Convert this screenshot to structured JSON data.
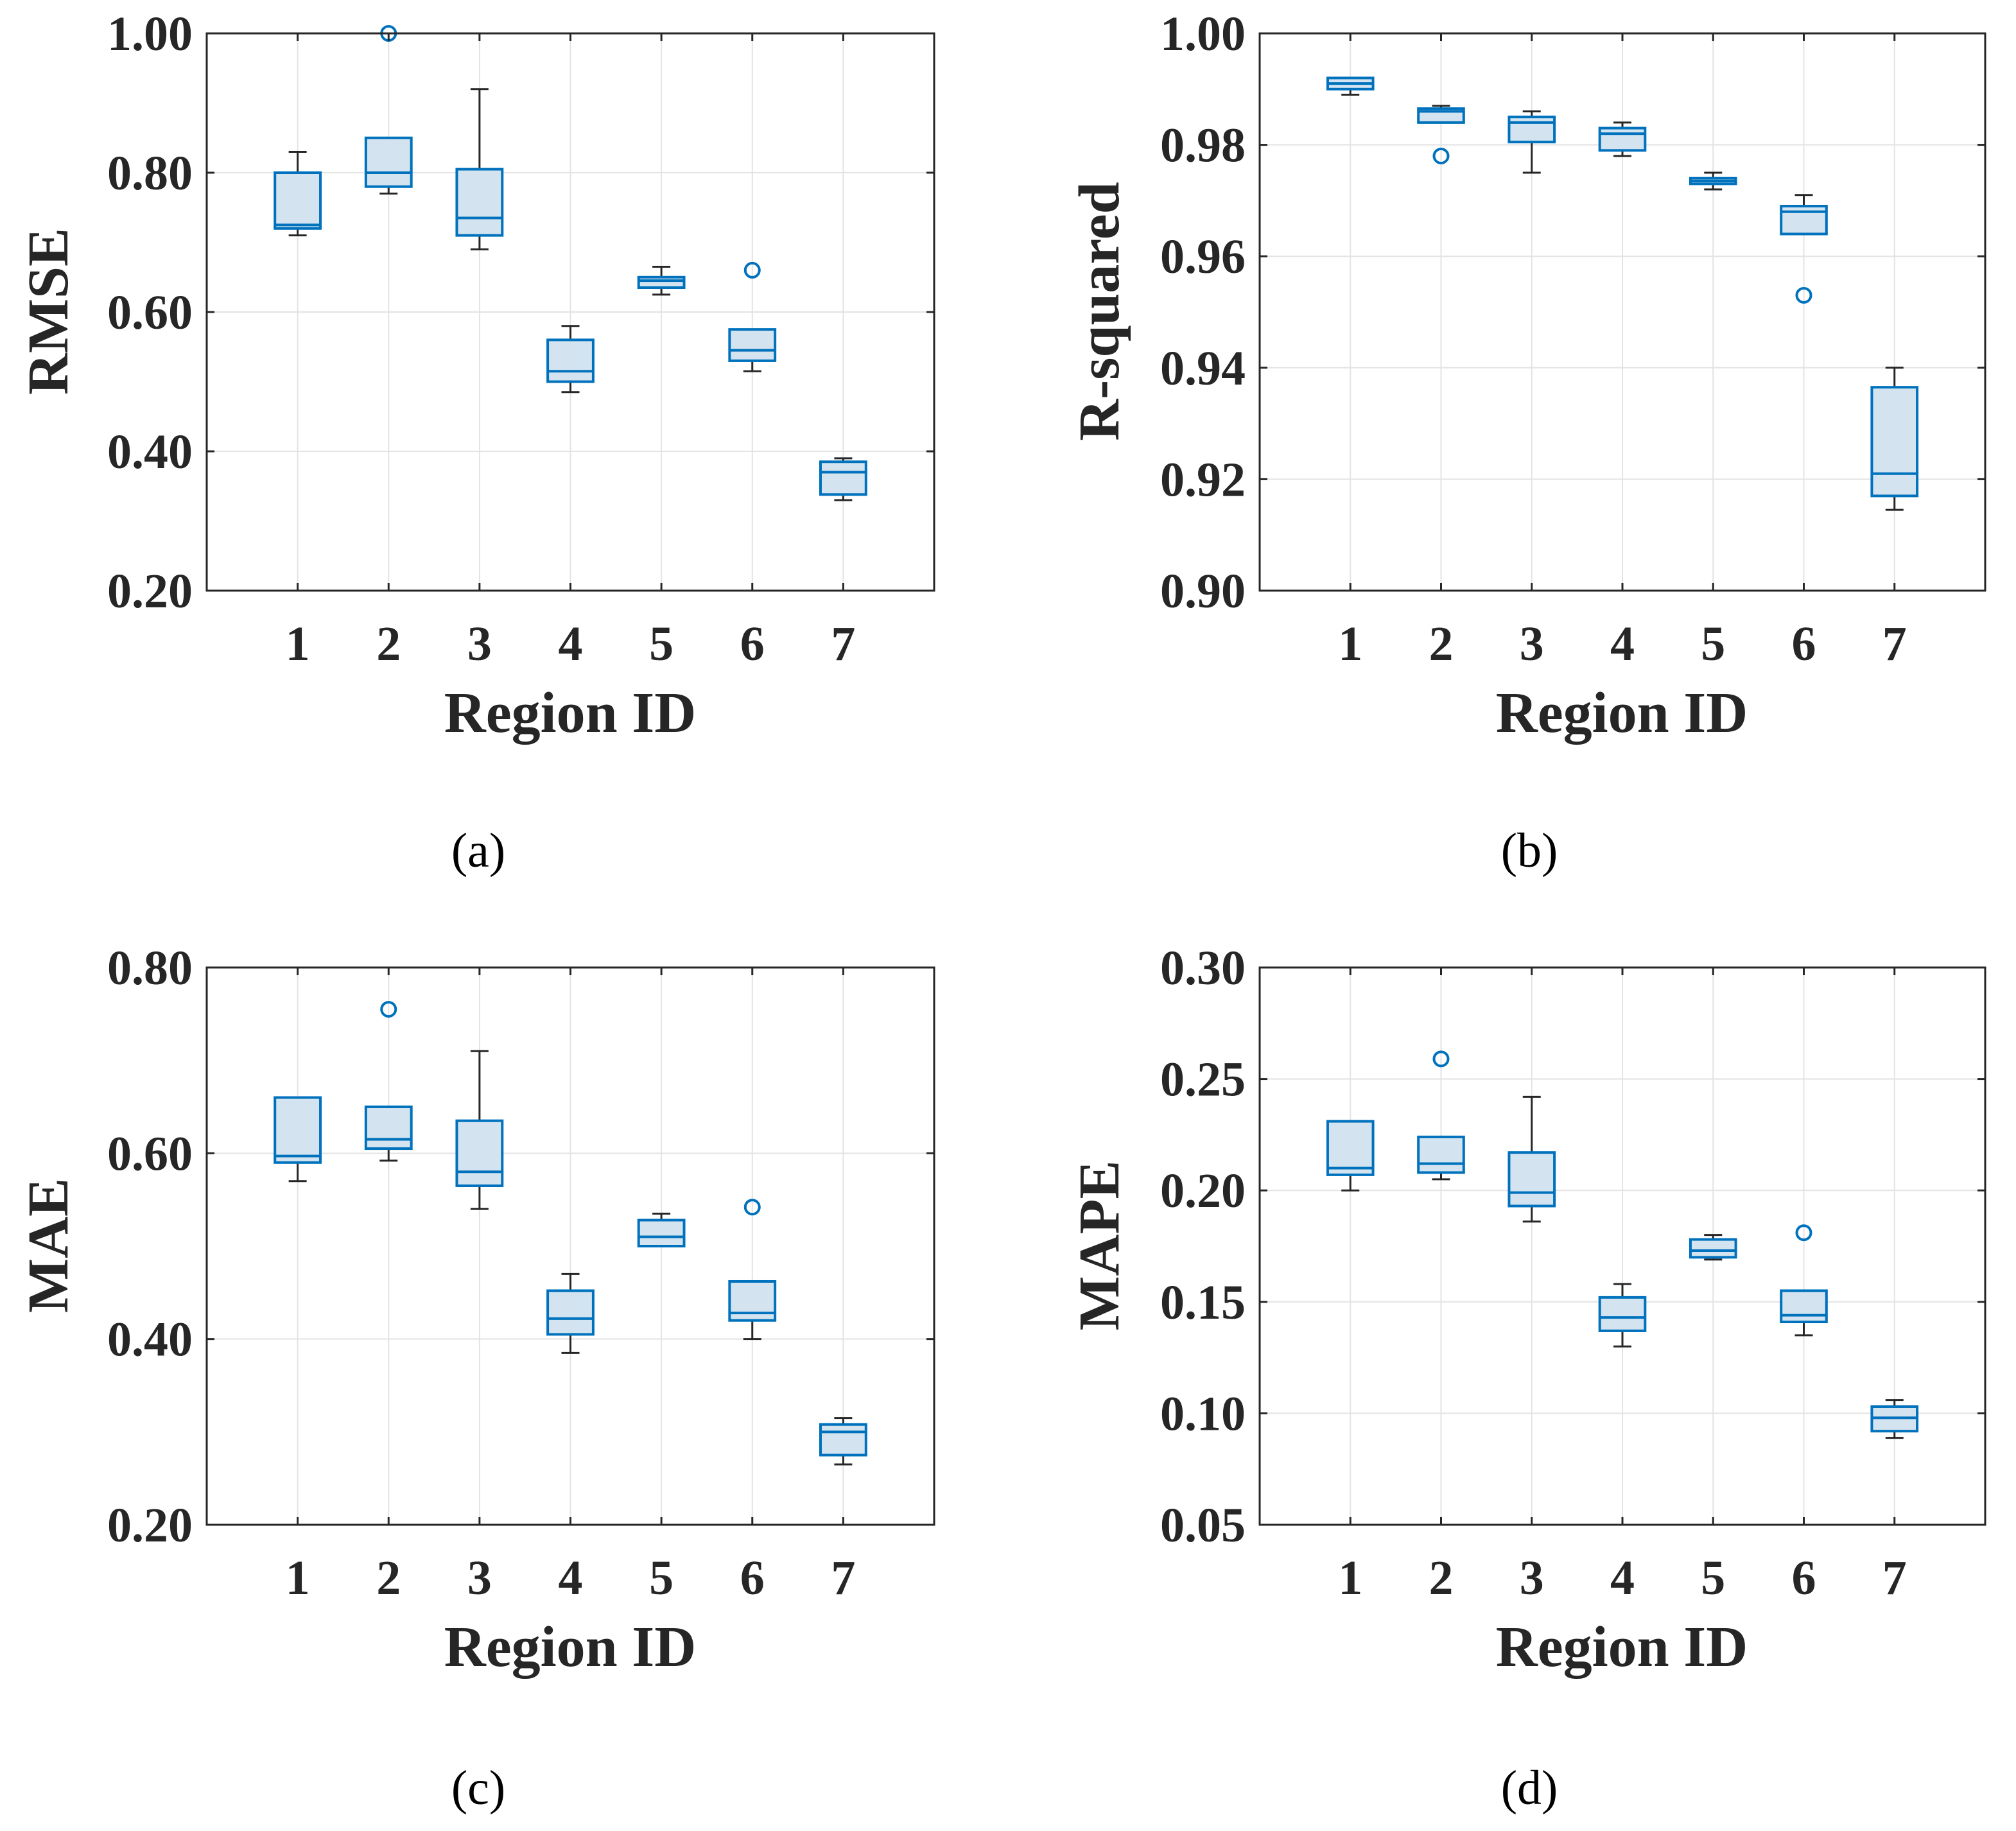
{
  "colors": {
    "box_edge": "#0072BD",
    "box_fill": "#D3E4F0",
    "whisker": "#262626",
    "grid": "#E3E3E3",
    "axis": "#262626"
  },
  "chart_data": [
    {
      "type": "box",
      "caption": "(a)",
      "xlabel": "Region ID",
      "ylabel": "RMSE",
      "categories": [
        "1",
        "2",
        "3",
        "4",
        "5",
        "6",
        "7"
      ],
      "ylim": [
        0.2,
        1.0
      ],
      "yticks": [
        0.2,
        0.4,
        0.6,
        0.8,
        1.0
      ],
      "ytick_labels": [
        "0.20",
        "0.40",
        "0.60",
        "0.80",
        "1.00"
      ],
      "grid": true,
      "boxes": [
        {
          "min": 0.71,
          "q1": 0.72,
          "median": 0.725,
          "q3": 0.8,
          "max": 0.83,
          "outliers": []
        },
        {
          "min": 0.77,
          "q1": 0.78,
          "median": 0.8,
          "q3": 0.85,
          "max": 0.85,
          "outliers": [
            1.0
          ]
        },
        {
          "min": 0.69,
          "q1": 0.71,
          "median": 0.735,
          "q3": 0.805,
          "max": 0.92,
          "outliers": []
        },
        {
          "min": 0.485,
          "q1": 0.5,
          "median": 0.515,
          "q3": 0.56,
          "max": 0.58,
          "outliers": []
        },
        {
          "min": 0.625,
          "q1": 0.635,
          "median": 0.645,
          "q3": 0.65,
          "max": 0.665,
          "outliers": []
        },
        {
          "min": 0.515,
          "q1": 0.53,
          "median": 0.545,
          "q3": 0.575,
          "max": 0.575,
          "outliers": [
            0.66
          ]
        },
        {
          "min": 0.33,
          "q1": 0.338,
          "median": 0.37,
          "q3": 0.385,
          "max": 0.39,
          "outliers": []
        }
      ]
    },
    {
      "type": "box",
      "caption": "(b)",
      "xlabel": "Region ID",
      "ylabel": "R-squared",
      "categories": [
        "1",
        "2",
        "3",
        "4",
        "5",
        "6",
        "7"
      ],
      "ylim": [
        0.9,
        1.0
      ],
      "yticks": [
        0.9,
        0.92,
        0.94,
        0.96,
        0.98,
        1.0
      ],
      "ytick_labels": [
        "0.90",
        "0.92",
        "0.94",
        "0.96",
        "0.98",
        "1.00"
      ],
      "grid": true,
      "boxes": [
        {
          "min": 0.989,
          "q1": 0.99,
          "median": 0.991,
          "q3": 0.992,
          "max": 0.992,
          "outliers": []
        },
        {
          "min": 0.984,
          "q1": 0.984,
          "median": 0.986,
          "q3": 0.9865,
          "max": 0.987,
          "outliers": [
            0.978
          ]
        },
        {
          "min": 0.975,
          "q1": 0.9805,
          "median": 0.984,
          "q3": 0.985,
          "max": 0.986,
          "outliers": []
        },
        {
          "min": 0.978,
          "q1": 0.979,
          "median": 0.982,
          "q3": 0.983,
          "max": 0.984,
          "outliers": []
        },
        {
          "min": 0.972,
          "q1": 0.973,
          "median": 0.9735,
          "q3": 0.974,
          "max": 0.975,
          "outliers": []
        },
        {
          "min": 0.964,
          "q1": 0.964,
          "median": 0.968,
          "q3": 0.969,
          "max": 0.971,
          "outliers": [
            0.953
          ]
        },
        {
          "min": 0.9145,
          "q1": 0.917,
          "median": 0.921,
          "q3": 0.9365,
          "max": 0.94,
          "outliers": []
        }
      ]
    },
    {
      "type": "box",
      "caption": "(c)",
      "xlabel": "Region ID",
      "ylabel": "MAE",
      "categories": [
        "1",
        "2",
        "3",
        "4",
        "5",
        "6",
        "7"
      ],
      "ylim": [
        0.2,
        0.8
      ],
      "yticks": [
        0.2,
        0.4,
        0.6,
        0.8
      ],
      "ytick_labels": [
        "0.20",
        "0.40",
        "0.60",
        "0.80"
      ],
      "grid": true,
      "boxes": [
        {
          "min": 0.57,
          "q1": 0.59,
          "median": 0.597,
          "q3": 0.66,
          "max": 0.66,
          "outliers": []
        },
        {
          "min": 0.592,
          "q1": 0.605,
          "median": 0.615,
          "q3": 0.65,
          "max": 0.65,
          "outliers": [
            0.755
          ]
        },
        {
          "min": 0.54,
          "q1": 0.565,
          "median": 0.58,
          "q3": 0.635,
          "max": 0.71,
          "outliers": []
        },
        {
          "min": 0.385,
          "q1": 0.405,
          "median": 0.422,
          "q3": 0.452,
          "max": 0.47,
          "outliers": []
        },
        {
          "min": 0.5,
          "q1": 0.5,
          "median": 0.51,
          "q3": 0.528,
          "max": 0.535,
          "outliers": []
        },
        {
          "min": 0.4,
          "q1": 0.42,
          "median": 0.428,
          "q3": 0.462,
          "max": 0.462,
          "outliers": [
            0.542
          ]
        },
        {
          "min": 0.265,
          "q1": 0.275,
          "median": 0.3,
          "q3": 0.308,
          "max": 0.315,
          "outliers": []
        }
      ]
    },
    {
      "type": "box",
      "caption": "(d)",
      "xlabel": "Region ID",
      "ylabel": "MAPE",
      "categories": [
        "1",
        "2",
        "3",
        "4",
        "5",
        "6",
        "7"
      ],
      "ylim": [
        0.05,
        0.3
      ],
      "yticks": [
        0.05,
        0.1,
        0.15,
        0.2,
        0.25,
        0.3
      ],
      "ytick_labels": [
        "0.05",
        "0.10",
        "0.15",
        "0.20",
        "0.25",
        "0.30"
      ],
      "grid": true,
      "boxes": [
        {
          "min": 0.2,
          "q1": 0.207,
          "median": 0.21,
          "q3": 0.231,
          "max": 0.231,
          "outliers": []
        },
        {
          "min": 0.205,
          "q1": 0.208,
          "median": 0.212,
          "q3": 0.224,
          "max": 0.224,
          "outliers": [
            0.259
          ]
        },
        {
          "min": 0.186,
          "q1": 0.193,
          "median": 0.199,
          "q3": 0.217,
          "max": 0.242,
          "outliers": []
        },
        {
          "min": 0.13,
          "q1": 0.137,
          "median": 0.143,
          "q3": 0.152,
          "max": 0.158,
          "outliers": []
        },
        {
          "min": 0.169,
          "q1": 0.17,
          "median": 0.173,
          "q3": 0.178,
          "max": 0.18,
          "outliers": []
        },
        {
          "min": 0.135,
          "q1": 0.141,
          "median": 0.144,
          "q3": 0.155,
          "max": 0.155,
          "outliers": [
            0.181
          ]
        },
        {
          "min": 0.089,
          "q1": 0.092,
          "median": 0.098,
          "q3": 0.103,
          "max": 0.106,
          "outliers": []
        }
      ]
    }
  ]
}
